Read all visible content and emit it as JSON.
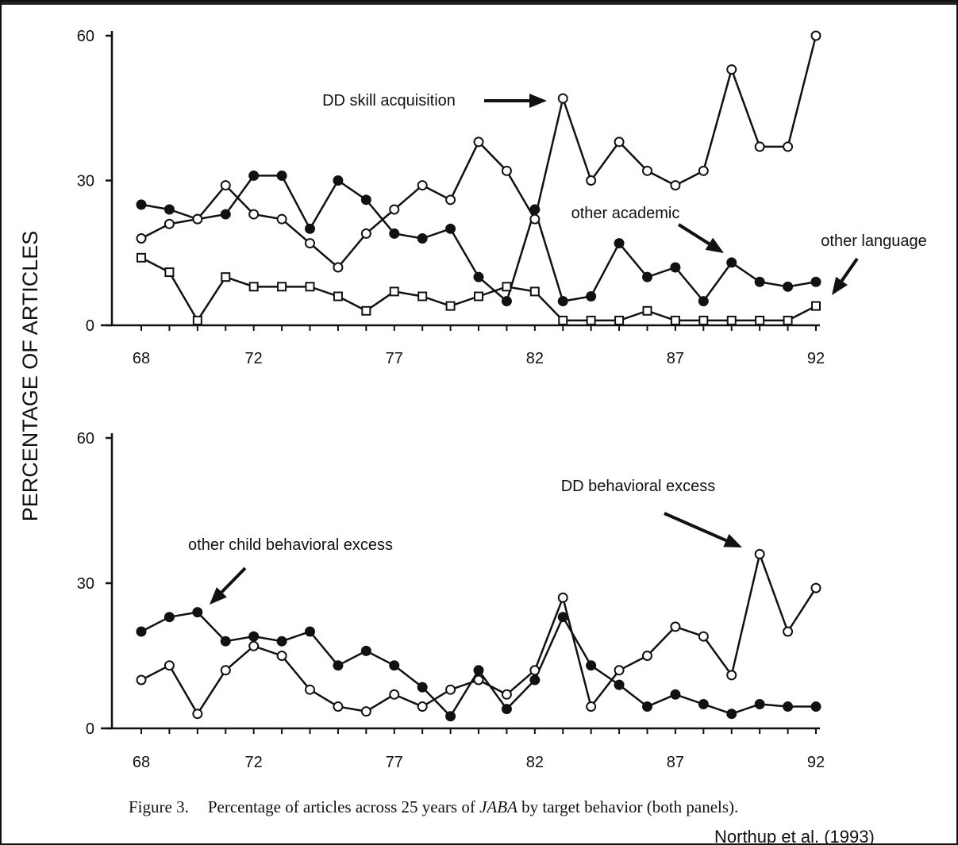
{
  "y_axis_label": "PERCENTAGE OF ARTICLES",
  "caption": {
    "figure_number": "Figure 3.",
    "text_before": "Percentage of articles across 25 years of ",
    "italic": "JABA",
    "text_after": " by target behavior (both panels)."
  },
  "citation": "Northup et al. (1993)",
  "chart_data": [
    {
      "type": "line",
      "x": [
        68,
        69,
        70,
        71,
        72,
        73,
        74,
        75,
        76,
        77,
        78,
        79,
        80,
        81,
        82,
        83,
        84,
        85,
        86,
        87,
        88,
        89,
        90,
        91,
        92
      ],
      "xticks": [
        "68",
        "72",
        "77",
        "82",
        "87",
        "92"
      ],
      "xtick_values": [
        68,
        72,
        77,
        82,
        87,
        92
      ],
      "yticks": [
        "0",
        "30",
        "60"
      ],
      "ylim": [
        0,
        60
      ],
      "xlim": [
        67,
        92
      ],
      "grid": false,
      "series": [
        {
          "marker": "filled-circle",
          "values": [
            25,
            24,
            22,
            23,
            31,
            31,
            20,
            30,
            26,
            19,
            18,
            20,
            10,
            5,
            24,
            5,
            6,
            17,
            10,
            12,
            5,
            13,
            9,
            8,
            9
          ]
        },
        {
          "marker": "open-circle",
          "values": [
            18,
            21,
            22,
            29,
            23,
            22,
            17,
            12,
            19,
            24,
            29,
            26,
            38,
            32,
            22,
            47,
            30,
            38,
            32,
            29,
            32,
            53,
            37,
            37,
            60
          ]
        },
        {
          "marker": "open-square",
          "values": [
            14,
            11,
            1,
            10,
            8,
            8,
            8,
            6,
            3,
            7,
            6,
            4,
            6,
            8,
            7,
            1,
            1,
            1,
            3,
            1,
            1,
            1,
            1,
            1,
            4
          ]
        }
      ],
      "annotations": [
        {
          "text": "DD skill acquisition",
          "arrow_to": [
            83,
            47
          ]
        },
        {
          "text": "other academic",
          "arrow_to": [
            88.8,
            15
          ]
        },
        {
          "text": "other language",
          "arrow_to": [
            92.5,
            6
          ]
        }
      ]
    },
    {
      "type": "line",
      "x": [
        68,
        69,
        70,
        71,
        72,
        73,
        74,
        75,
        76,
        77,
        78,
        79,
        80,
        81,
        82,
        83,
        84,
        85,
        86,
        87,
        88,
        89,
        90,
        91,
        92
      ],
      "xticks": [
        "68",
        "72",
        "77",
        "82",
        "87",
        "92"
      ],
      "xtick_values": [
        68,
        72,
        77,
        82,
        87,
        92
      ],
      "yticks": [
        "0",
        "30",
        "60"
      ],
      "ylim": [
        0,
        60
      ],
      "xlim": [
        67,
        92
      ],
      "grid": false,
      "series": [
        {
          "marker": "filled-circle",
          "values": [
            20,
            23,
            24,
            18,
            19,
            18,
            20,
            13,
            16,
            13,
            8.5,
            2.5,
            12,
            4,
            10,
            23,
            13,
            9,
            4.5,
            7,
            5,
            3,
            5,
            4.5,
            4.5
          ]
        },
        {
          "marker": "open-circle",
          "values": [
            10,
            13,
            3,
            12,
            17,
            15,
            8,
            4.5,
            3.5,
            7,
            4.5,
            8,
            10,
            7,
            12,
            27,
            4.5,
            12,
            15,
            21,
            19,
            11,
            36,
            20,
            29
          ]
        }
      ],
      "annotations": [
        {
          "text": "DD behavioral excess",
          "arrow_to": [
            89.6,
            38
          ]
        },
        {
          "text": "other child behavioral excess",
          "arrow_to": [
            70.2,
            26
          ]
        }
      ]
    }
  ]
}
